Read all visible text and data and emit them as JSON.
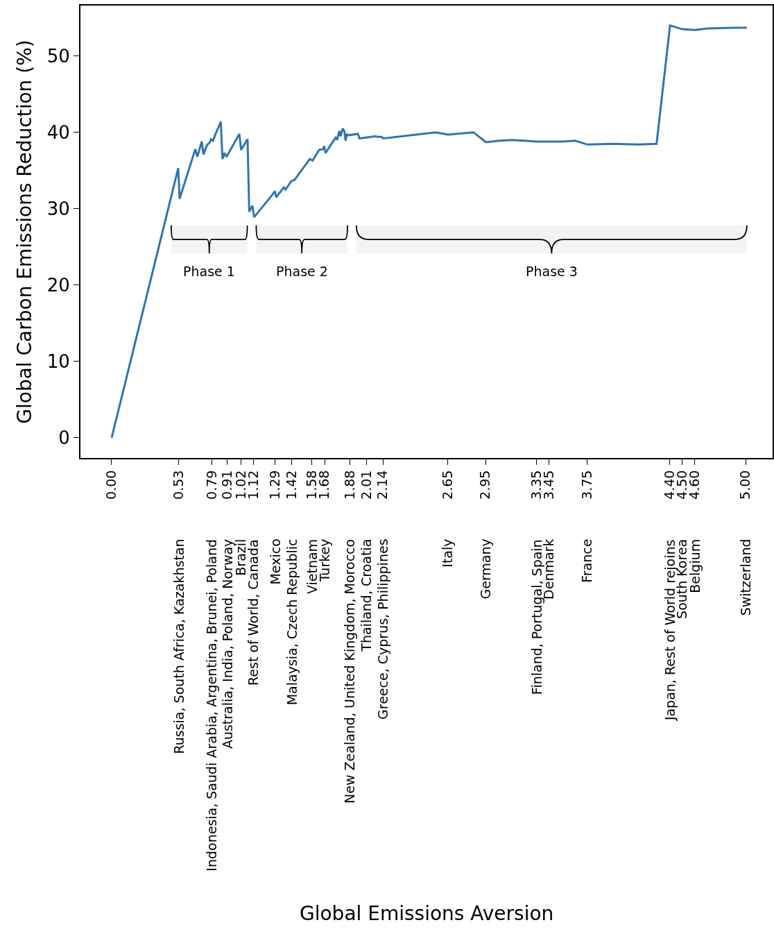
{
  "chart_data": {
    "type": "line",
    "ylabel": "Global Carbon Emissions Reduction (%)",
    "series": [
      {
        "color": "#2e75b0",
        "x": [
          0,
          0.525,
          0.536,
          0.66,
          0.676,
          0.711,
          0.724,
          0.751,
          0.775,
          0.784,
          0.8,
          0.82,
          0.861,
          0.874,
          0.89,
          0.906,
          1.007,
          1.021,
          1.072,
          1.085,
          1.11,
          1.124,
          1.271,
          1.286,
          1.298,
          1.358,
          1.371,
          1.417,
          1.444,
          1.563,
          1.585,
          1.636,
          1.669,
          1.676,
          1.687,
          1.754,
          1.767,
          1.778,
          1.796,
          1.805,
          1.823,
          1.836,
          1.845,
          1.854,
          1.864,
          1.942,
          1.955,
          2.083,
          2.1,
          2.128,
          2.143,
          2.556,
          2.653,
          2.854,
          2.952,
          3.058,
          3.158,
          3.35,
          3.56,
          3.656,
          3.754,
          3.951,
          4.152,
          4.298,
          4.404,
          4.499,
          4.599,
          4.699,
          4.909,
          5.01
        ],
        "values": [
          0,
          35.3,
          31.3,
          37.8,
          36.8,
          38.8,
          37.1,
          38.3,
          38.7,
          39.1,
          38.9,
          39.8,
          41.4,
          36.5,
          37.3,
          36.8,
          39.8,
          37.7,
          39.1,
          29.6,
          30.4,
          28.9,
          31.9,
          32.3,
          31.5,
          32.8,
          32.5,
          33.6,
          33.8,
          36.5,
          36.3,
          37.7,
          37.8,
          38.2,
          37.3,
          39.0,
          39.3,
          39.0,
          40.2,
          39.5,
          40.5,
          40.1,
          38.9,
          39.8,
          39.6,
          39.8,
          39.2,
          39.5,
          39.4,
          39.4,
          39.2,
          40.0,
          39.7,
          40.0,
          38.7,
          38.9,
          39.0,
          38.8,
          38.8,
          38.9,
          38.4,
          38.5,
          38.4,
          38.5,
          54.0,
          53.5,
          53.4,
          53.6,
          53.7,
          53.7
        ]
      }
    ],
    "xlim": [
      -0.246,
      5.213
    ],
    "ylim": [
      -2.64,
      56.6
    ],
    "xticks": [
      {
        "value": 0,
        "label": "0.00"
      },
      {
        "value": 0.53,
        "label": "0.53"
      },
      {
        "value": 0.79,
        "label": "0.79"
      },
      {
        "value": 0.91,
        "label": "0.91"
      },
      {
        "value": 1.02,
        "label": "1.02"
      },
      {
        "value": 1.12,
        "label": "1.12"
      },
      {
        "value": 1.29,
        "label": "1.29"
      },
      {
        "value": 1.42,
        "label": "1.42"
      },
      {
        "value": 1.58,
        "label": "1.58"
      },
      {
        "value": 1.68,
        "label": "1.68"
      },
      {
        "value": 1.88,
        "label": "1.88"
      },
      {
        "value": 2.01,
        "label": "2.01"
      },
      {
        "value": 2.14,
        "label": "2.14"
      },
      {
        "value": 2.65,
        "label": "2.65"
      },
      {
        "value": 2.95,
        "label": "2.95"
      },
      {
        "value": 3.35,
        "label": "3.35"
      },
      {
        "value": 3.45,
        "label": "3.45"
      },
      {
        "value": 3.75,
        "label": "3.75"
      },
      {
        "value": 4.4,
        "label": "4.40"
      },
      {
        "value": 4.5,
        "label": "4.50"
      },
      {
        "value": 4.6,
        "label": "4.60"
      },
      {
        "value": 5,
        "label": "5.00"
      }
    ],
    "yticks": [
      0,
      10,
      20,
      30,
      40,
      50
    ],
    "marker": "none",
    "line_style": "solid",
    "bands": [
      {
        "axis": "x",
        "from": 0.47,
        "to": 1.07,
        "label": "Phase 1"
      },
      {
        "axis": "x",
        "from": 1.14,
        "to": 1.86,
        "label": "Phase 2"
      },
      {
        "axis": "x",
        "from": 1.93,
        "to": 5.01,
        "label": "Phase 3"
      }
    ],
    "annotations": [
      "Russia, South Africa, Kazakhstan",
      "Indonesia, Saudi Arabia, Argentina, Brunei, Poland",
      "Australia, India, Poland, Norway",
      "Brazil",
      "Rest of World, Canada",
      "Mexico",
      "Malaysia, Czech Republic",
      "Vietnam",
      "Turkey",
      "New Zealand, United Kingdom, Morocco",
      "Thailand, Croatia",
      "Greece, Cyprus, Philippines",
      "Italy",
      "Germany",
      "Finland, Portugal, Spain",
      "Denmark",
      "France",
      "Japan, Rest of World rejoins",
      "South Korea",
      "Belgium",
      "Switzerland",
      {
        "text": "Global Emissions Aversion"
      }
    ]
  }
}
